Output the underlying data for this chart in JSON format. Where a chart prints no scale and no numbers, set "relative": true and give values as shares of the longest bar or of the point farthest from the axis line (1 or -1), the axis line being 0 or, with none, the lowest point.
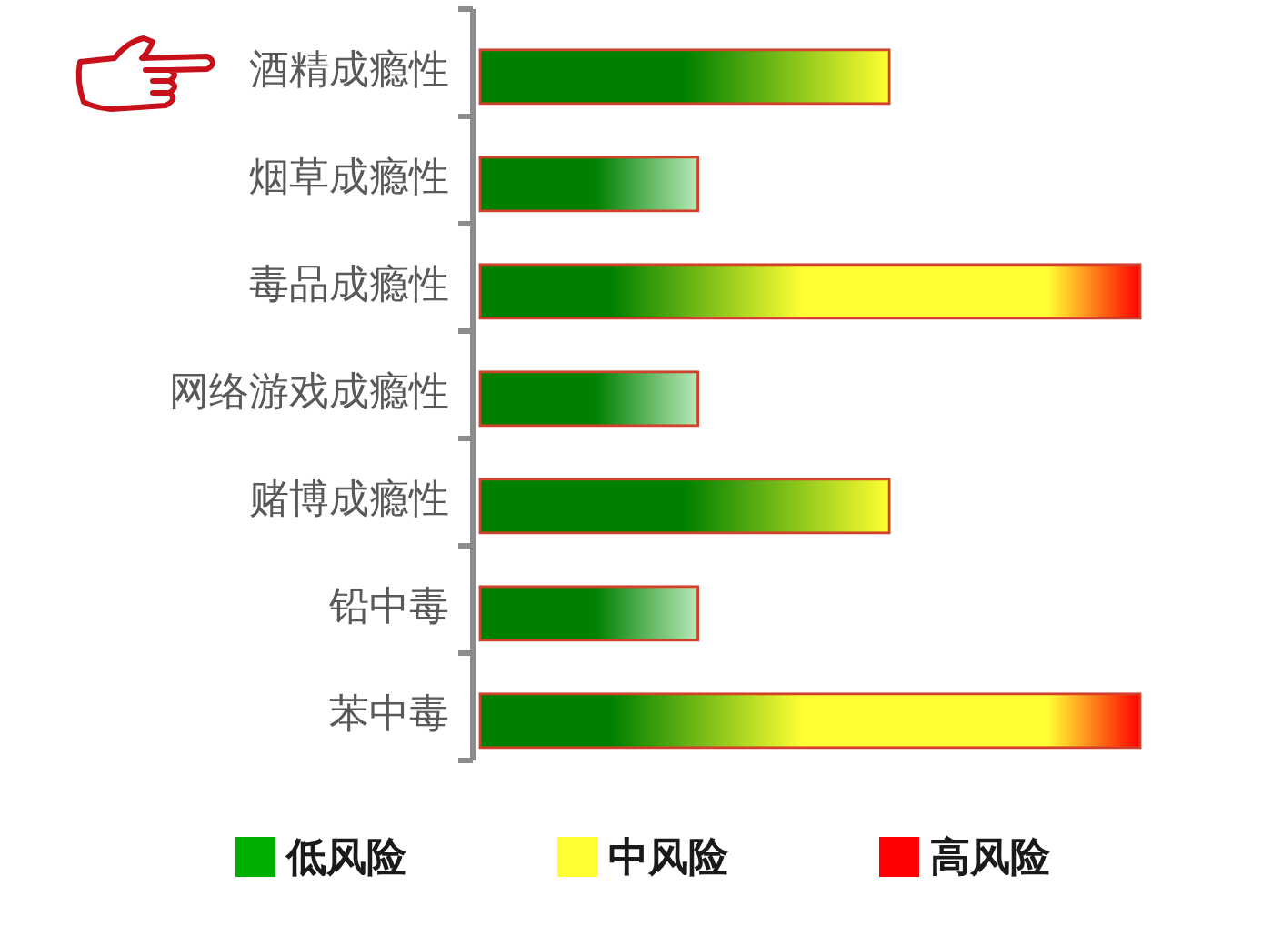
{
  "chart_data": {
    "type": "bar",
    "orientation": "horizontal",
    "stacked": true,
    "relative": true,
    "categories": [
      "酒精成瘾性",
      "烟草成瘾性",
      "毒品成瘾性",
      "网络游戏成瘾性",
      "赌博成瘾性",
      "铅中毒",
      "苯中毒"
    ],
    "series": [
      {
        "name": "低风险",
        "color": "#00b000",
        "values": [
          null,
          0.33,
          null,
          0.33,
          null,
          0.33,
          null
        ]
      },
      {
        "name": "中风险",
        "color": "#ffff33",
        "values": [
          0.62,
          null,
          null,
          null,
          0.62,
          null,
          null
        ]
      },
      {
        "name": "高风险",
        "color": "#ff0000",
        "values": [
          null,
          null,
          1,
          null,
          null,
          null,
          1
        ]
      }
    ],
    "legend": "bottom"
  }
}
